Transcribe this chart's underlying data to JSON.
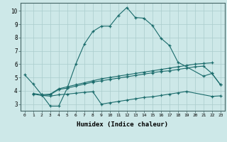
{
  "xlabel": "Humidex (Indice chaleur)",
  "bg_color": "#cde8e8",
  "grid_color": "#aacccc",
  "line_color": "#1a6b6b",
  "xlim": [
    -0.5,
    23.5
  ],
  "ylim": [
    2.5,
    10.6
  ],
  "xticks": [
    0,
    1,
    2,
    3,
    4,
    5,
    6,
    7,
    8,
    9,
    10,
    11,
    12,
    13,
    14,
    15,
    16,
    17,
    18,
    19,
    20,
    21,
    22,
    23
  ],
  "yticks": [
    3,
    4,
    5,
    6,
    7,
    8,
    9,
    10
  ],
  "curve1_x": [
    0,
    1,
    2,
    3,
    4,
    5,
    6,
    7,
    8,
    9,
    10,
    11,
    12,
    13,
    14,
    15,
    16,
    17,
    18,
    21,
    22,
    23
  ],
  "curve1_y": [
    5.2,
    4.5,
    3.7,
    2.85,
    2.85,
    4.2,
    6.0,
    7.5,
    8.45,
    8.85,
    8.85,
    9.65,
    10.25,
    9.5,
    9.45,
    8.9,
    7.95,
    7.4,
    6.15,
    5.1,
    5.3,
    4.45
  ],
  "curve2_x": [
    1,
    2,
    3,
    4,
    5,
    6,
    7,
    8,
    9,
    10,
    11,
    12,
    13,
    14,
    15,
    16,
    17,
    18,
    19,
    20,
    21,
    22
  ],
  "curve2_y": [
    3.8,
    3.7,
    3.75,
    4.15,
    4.3,
    4.45,
    4.6,
    4.75,
    4.9,
    5.0,
    5.1,
    5.2,
    5.3,
    5.4,
    5.5,
    5.6,
    5.7,
    5.8,
    5.9,
    6.0,
    6.05,
    6.1
  ],
  "curve3_x": [
    1,
    2,
    3,
    4,
    5,
    6,
    7,
    8,
    9,
    10,
    11,
    12,
    13,
    14,
    15,
    16,
    17,
    18,
    19,
    20,
    21,
    22,
    23
  ],
  "curve3_y": [
    3.75,
    3.65,
    3.7,
    4.1,
    4.2,
    4.35,
    4.5,
    4.65,
    4.75,
    4.85,
    4.95,
    5.05,
    5.15,
    5.25,
    5.35,
    5.45,
    5.5,
    5.6,
    5.7,
    5.8,
    5.85,
    5.3,
    4.45
  ],
  "curve4_x": [
    2,
    3,
    4,
    5,
    6,
    7,
    8,
    9,
    10,
    11,
    12,
    13,
    14,
    15,
    16,
    17,
    18,
    19,
    22,
    23
  ],
  "curve4_y": [
    3.65,
    3.6,
    3.7,
    3.75,
    3.82,
    3.88,
    3.93,
    3.0,
    3.1,
    3.2,
    3.3,
    3.4,
    3.5,
    3.55,
    3.65,
    3.75,
    3.85,
    3.95,
    3.58,
    3.62
  ]
}
